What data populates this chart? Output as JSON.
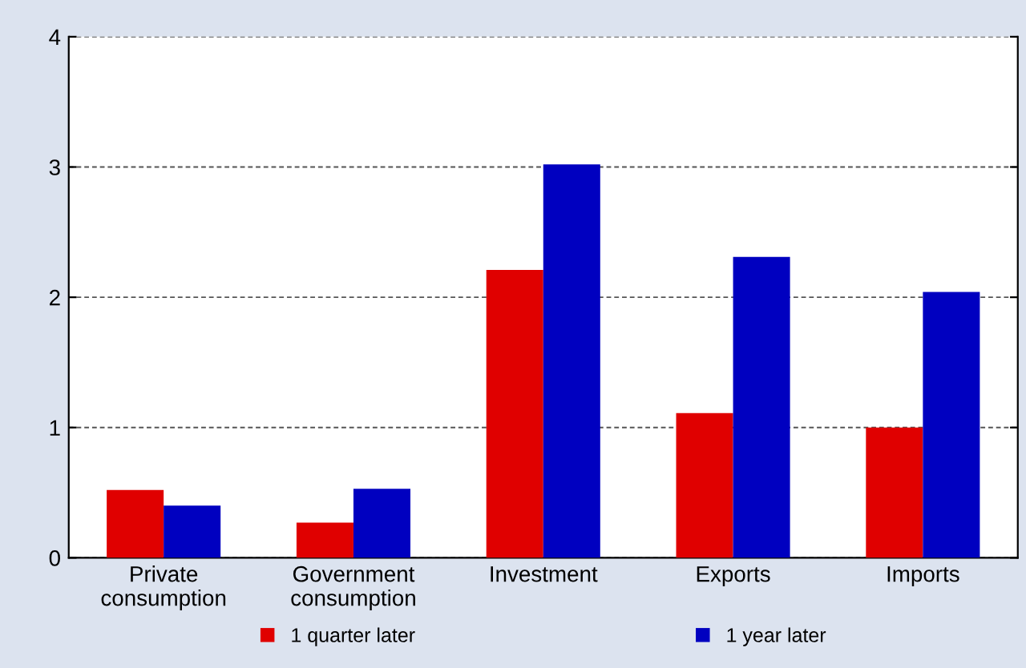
{
  "chart_data": {
    "type": "bar",
    "categories": [
      "Private\nconsumption",
      "Government\nconsumption",
      "Investment",
      "Exports",
      "Imports"
    ],
    "series": [
      {
        "name": "1 quarter later",
        "color": "#e00000",
        "values": [
          0.52,
          0.27,
          2.21,
          1.11,
          1.0
        ]
      },
      {
        "name": "1 year later",
        "color": "#0000c0",
        "values": [
          0.4,
          0.53,
          3.02,
          2.31,
          2.04
        ]
      }
    ],
    "ylim": [
      0,
      4
    ],
    "yticks": [
      0,
      1,
      2,
      3,
      4
    ],
    "grid": "y",
    "legend": "bottom"
  }
}
